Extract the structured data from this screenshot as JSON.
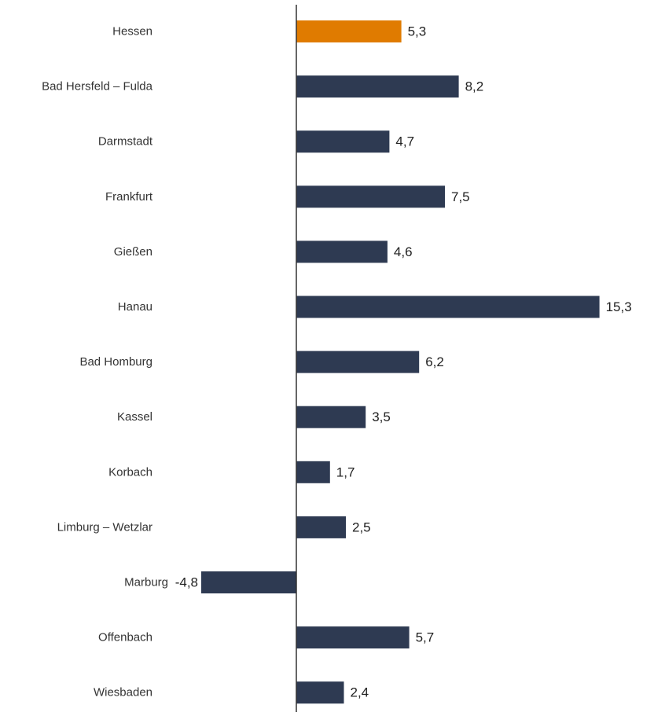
{
  "chart_data": {
    "type": "bar",
    "orientation": "horizontal",
    "categories": [
      "Hessen",
      "Bad Hersfeld – Fulda",
      "Darmstadt",
      "Frankfurt",
      "Gießen",
      "Hanau",
      "Bad Homburg",
      "Kassel",
      "Korbach",
      "Limburg – Wetzlar",
      "Marburg",
      "Offenbach",
      "Wiesbaden"
    ],
    "values": [
      5.3,
      8.2,
      4.7,
      7.5,
      4.6,
      15.3,
      6.2,
      3.5,
      1.7,
      2.5,
      -4.8,
      5.7,
      2.4
    ],
    "value_labels": [
      "5,3",
      "8,2",
      "4,7",
      "7,5",
      "4,6",
      "15,3",
      "6,2",
      "3,5",
      "1,7",
      "2,5",
      "-4,8",
      "5,7",
      "2,4"
    ],
    "title": "",
    "xlabel": "",
    "ylabel": "",
    "xlim": [
      -4.8,
      15.3
    ],
    "grid": false,
    "legend": "none",
    "colors": {
      "highlight": "#e07b00",
      "default": "#2e3a52",
      "axis": "#333333"
    },
    "highlight_category": "Hessen"
  }
}
